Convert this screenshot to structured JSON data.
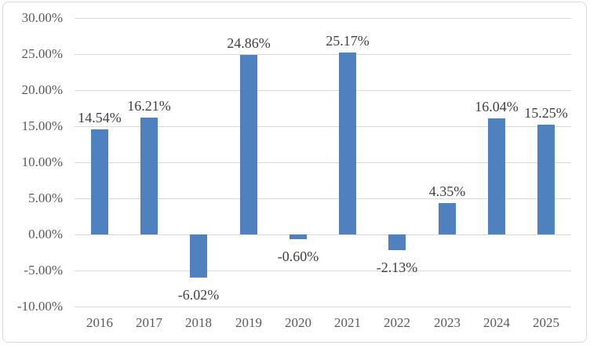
{
  "chart_data": {
    "type": "bar",
    "title": "",
    "xlabel": "",
    "ylabel": "",
    "categories": [
      "2016",
      "2017",
      "2018",
      "2019",
      "2020",
      "2021",
      "2022",
      "2023",
      "2024",
      "2025"
    ],
    "values": [
      14.54,
      16.21,
      -6.02,
      24.86,
      -0.6,
      25.17,
      -2.13,
      4.35,
      16.04,
      15.25
    ],
    "data_labels": [
      "14.54%",
      "16.21%",
      "-6.02%",
      "24.86%",
      "-0.60%",
      "25.17%",
      "-2.13%",
      "4.35%",
      "16.04%",
      "15.25%"
    ],
    "ylim": [
      -10,
      30
    ],
    "ytick_step": 5,
    "ytick_labels": [
      "30.00%",
      "25.00%",
      "20.00%",
      "15.00%",
      "10.00%",
      "5.00%",
      "0.00%",
      "-5.00%",
      "-10.00%"
    ],
    "grid": true,
    "legend": false,
    "colors": {
      "bar": "#4E81BD",
      "gridline": "#D9D9D9",
      "axis_text": "#595959",
      "data_label_text": "#404040",
      "frame_border": "#D9D9D9",
      "background": "#FFFFFF"
    }
  }
}
